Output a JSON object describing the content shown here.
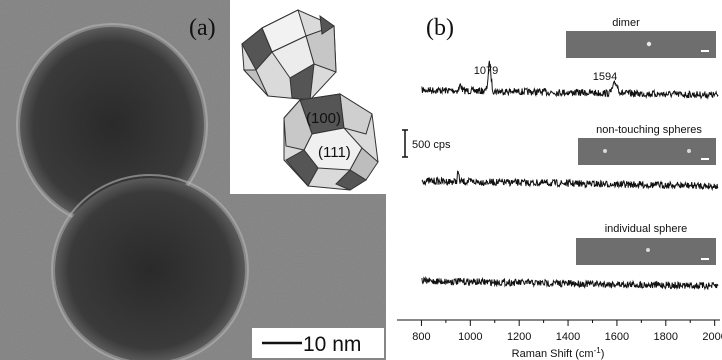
{
  "panel_a": {
    "label": "(a)",
    "facet_100": "(100)",
    "facet_111": "(111)",
    "scale_bar_text": "10 nm"
  },
  "panel_b": {
    "label": "(b)",
    "scale_text": "500 cps",
    "peaks": [
      "1079",
      "1594"
    ],
    "spectra": [
      {
        "name": "dimer"
      },
      {
        "name": "non-touching spheres"
      },
      {
        "name": "individual sphere"
      }
    ]
  },
  "chart_data": {
    "type": "line",
    "xlabel": "Raman Shift (cm",
    "xlabel_sup": "-1",
    "xlabel_close": ")",
    "xlim": [
      700,
      2030
    ],
    "xticks": [
      800,
      1000,
      1200,
      1400,
      1600,
      1800,
      2000
    ],
    "series": [
      {
        "name": "dimer",
        "peaks": [
          {
            "x": 1079,
            "height": 28,
            "width": 8
          },
          {
            "x": 1594,
            "height": 10,
            "width": 14
          },
          {
            "x": 960,
            "height": 6,
            "width": 6
          }
        ]
      },
      {
        "name": "non-touching spheres",
        "peaks": [
          {
            "x": 950,
            "height": 10,
            "width": 4
          }
        ]
      },
      {
        "name": "individual sphere",
        "peaks": []
      }
    ]
  },
  "colors": {
    "tem_background": "#8a8a8a",
    "particle_dark": "#2e2e2e",
    "facet_dark": "#555555",
    "facet_light": "#d4d4d4",
    "inset_image": "#6e6e6e",
    "trace": "#111111"
  }
}
